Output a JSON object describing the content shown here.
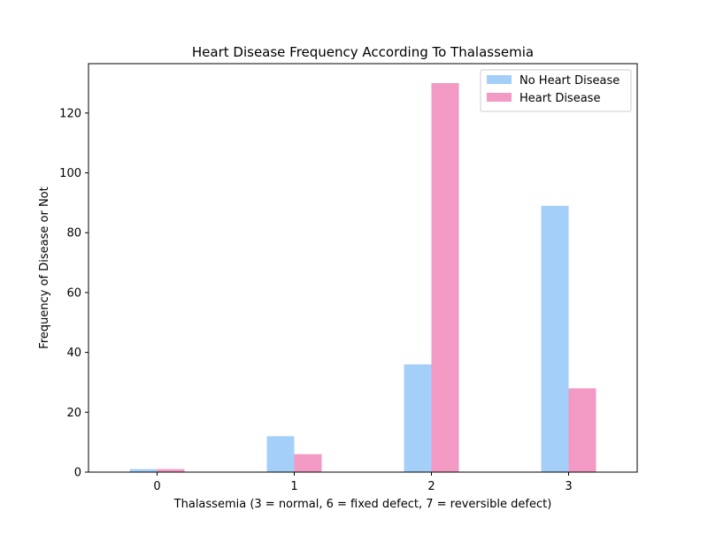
{
  "chart_data": {
    "type": "bar",
    "title": "Heart Disease Frequency According To Thalassemia",
    "xlabel": "Thalassemia (3 = normal, 6 = fixed defect, 7 = reversible defect)",
    "ylabel": "Frequency of Disease or Not",
    "categories": [
      "0",
      "1",
      "2",
      "3"
    ],
    "series": [
      {
        "name": "No Heart Disease",
        "color": "#a4cff9",
        "values": [
          1,
          12,
          36,
          89
        ]
      },
      {
        "name": "Heart Disease",
        "color": "#f29ac3",
        "values": [
          1,
          6,
          130,
          28
        ]
      }
    ],
    "ylim": [
      0,
      136.5
    ],
    "yticks": [
      0,
      20,
      40,
      60,
      80,
      100,
      120
    ],
    "grid": false,
    "legend_position": "top-right"
  }
}
